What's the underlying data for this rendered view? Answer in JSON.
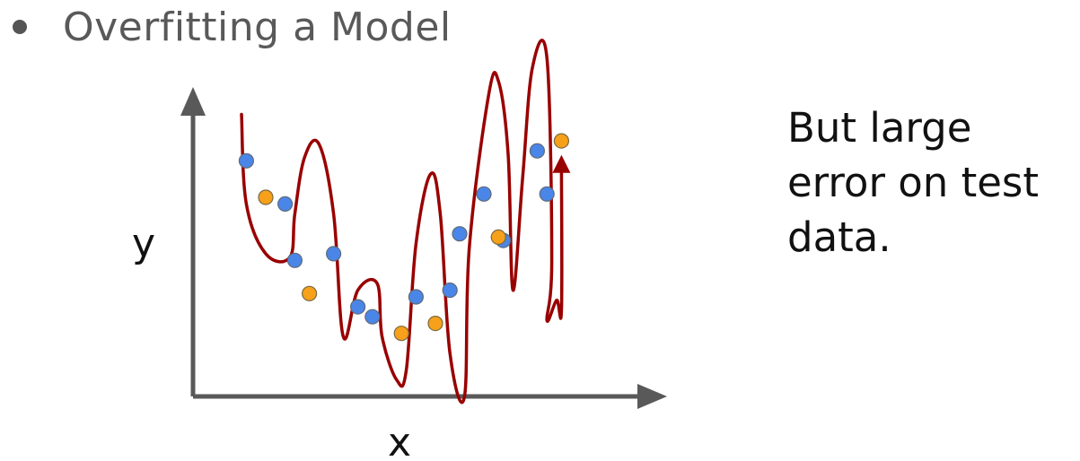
{
  "slide": {
    "bullet_title": "Overfitting a Model",
    "note_lines": [
      "But large",
      "error on test",
      "data."
    ]
  },
  "chart_data": {
    "type": "scatter",
    "xlabel": "x",
    "ylabel": "y",
    "grid": false,
    "legend": "none",
    "series": [
      {
        "color": "#4a86e8",
        "points": [
          [
            1.1,
            7.1
          ],
          [
            1.9,
            5.8
          ],
          [
            2.1,
            4.1
          ],
          [
            2.9,
            4.3
          ],
          [
            3.4,
            2.7
          ],
          [
            3.7,
            2.4
          ],
          [
            4.6,
            3.0
          ],
          [
            5.3,
            3.2
          ],
          [
            5.5,
            4.9
          ],
          [
            6.0,
            6.1
          ],
          [
            6.4,
            4.7
          ],
          [
            7.1,
            7.4
          ],
          [
            7.3,
            6.1
          ]
        ],
        "marker_edge": "#5f6b7a"
      },
      {
        "color": "#f7a01a",
        "points": [
          [
            1.5,
            6.0
          ],
          [
            2.4,
            3.1
          ],
          [
            4.3,
            1.9
          ],
          [
            5.0,
            2.2
          ],
          [
            6.3,
            4.8
          ],
          [
            7.6,
            7.7
          ]
        ],
        "marker_edge": "#7a6a40"
      }
    ],
    "fit_curve": {
      "color": "#990000",
      "points": [
        [
          1.0,
          8.5
        ],
        [
          1.1,
          5.8
        ],
        [
          1.5,
          4.3
        ],
        [
          2.0,
          4.2
        ],
        [
          2.1,
          5.5
        ],
        [
          2.3,
          7.2
        ],
        [
          2.6,
          7.6
        ],
        [
          2.9,
          5.5
        ],
        [
          3.1,
          1.8
        ],
        [
          3.4,
          3.2
        ],
        [
          3.8,
          3.4
        ],
        [
          3.9,
          1.8
        ],
        [
          4.2,
          0.5
        ],
        [
          4.4,
          0.8
        ],
        [
          4.6,
          4.6
        ],
        [
          4.9,
          6.7
        ],
        [
          5.1,
          5.5
        ],
        [
          5.3,
          1.3
        ],
        [
          5.6,
          0.0
        ],
        [
          5.7,
          4.5
        ],
        [
          6.1,
          9.1
        ],
        [
          6.3,
          9.5
        ],
        [
          6.5,
          7.3
        ],
        [
          6.6,
          3.2
        ],
        [
          6.8,
          6.6
        ],
        [
          7.0,
          9.9
        ],
        [
          7.3,
          10.2
        ],
        [
          7.4,
          4.1
        ],
        [
          7.3,
          2.3
        ],
        [
          7.5,
          2.9
        ],
        [
          7.6,
          2.6
        ],
        [
          7.6,
          6.9
        ]
      ]
    },
    "arrow": {
      "color": "#990000",
      "direction": "up"
    }
  }
}
